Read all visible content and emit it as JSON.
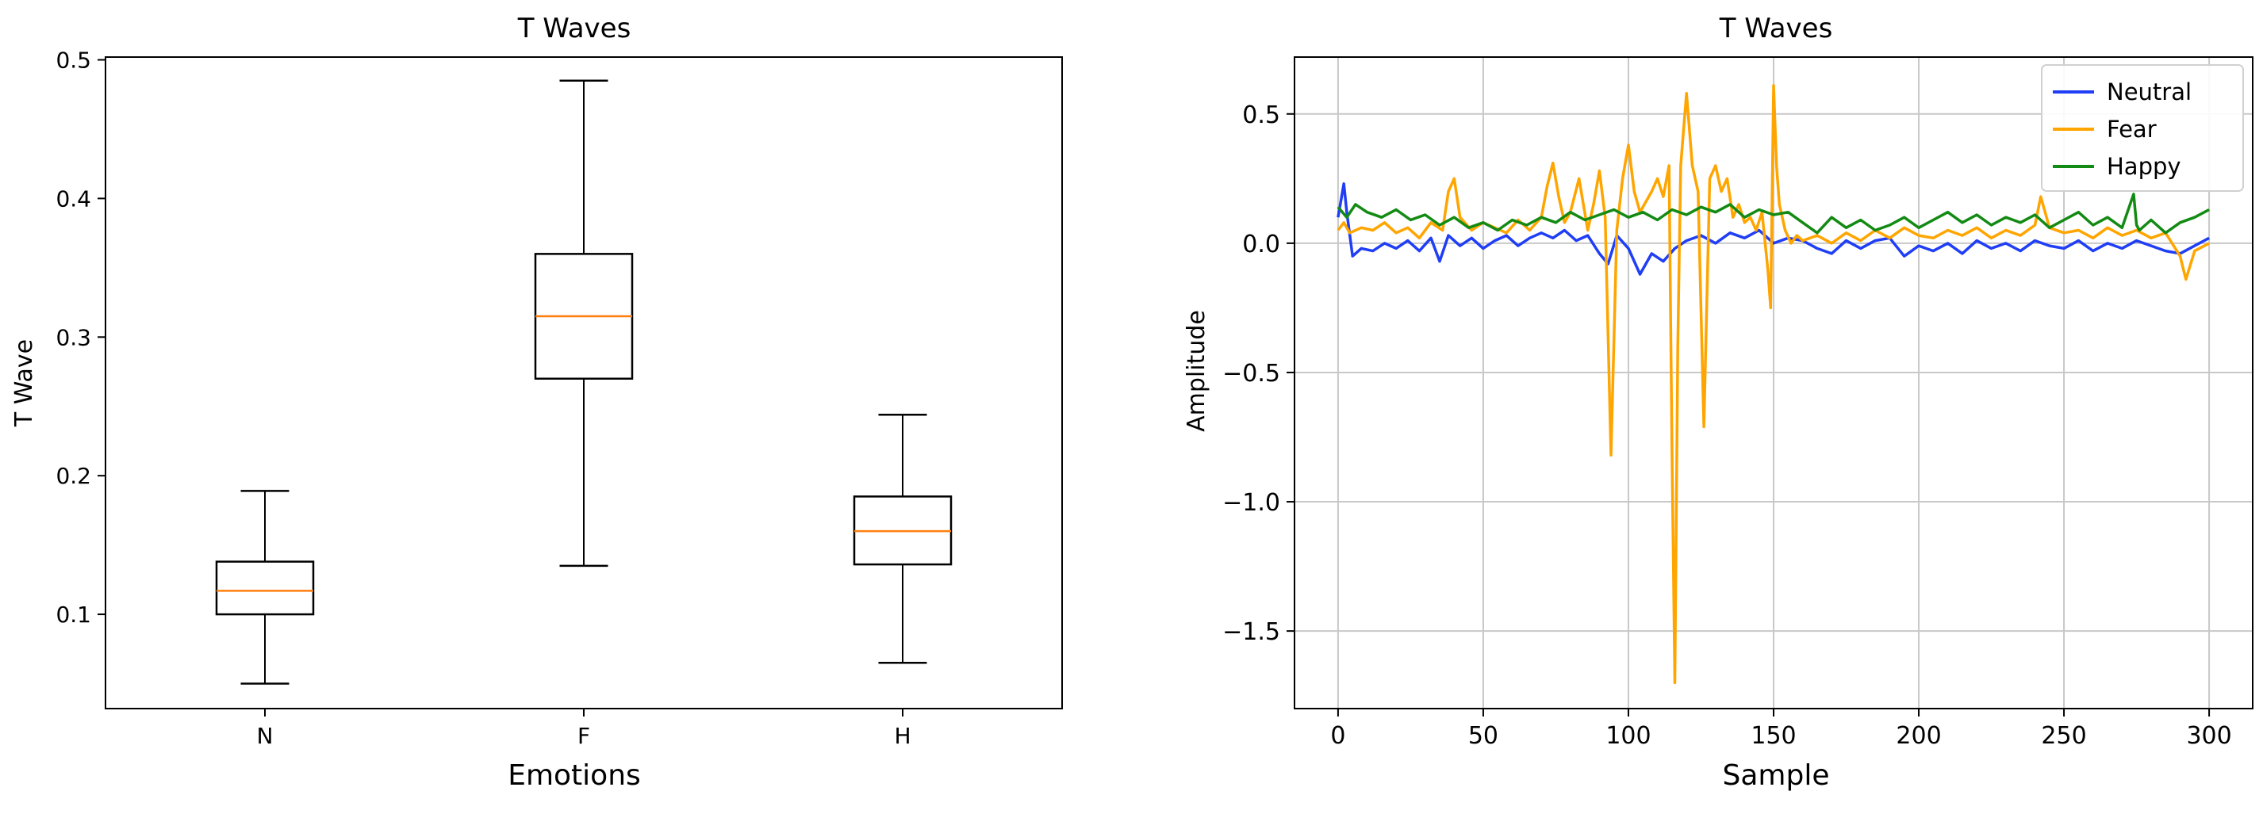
{
  "chart_data": [
    {
      "type": "box",
      "title": "T Waves",
      "xlabel": "Emotions",
      "ylabel": "T Wave",
      "ylim": [
        0.032,
        0.502
      ],
      "yticks": [
        0.1,
        0.2,
        0.3,
        0.4,
        0.5
      ],
      "ytick_labels": [
        "0.1",
        "0.2",
        "0.3",
        "0.4",
        "0.5"
      ],
      "categories": [
        "N",
        "F",
        "H"
      ],
      "boxes": [
        {
          "category": "N",
          "whisker_low": 0.05,
          "q1": 0.1,
          "median": 0.117,
          "q3": 0.138,
          "whisker_high": 0.189
        },
        {
          "category": "F",
          "whisker_low": 0.135,
          "q1": 0.27,
          "median": 0.315,
          "q3": 0.36,
          "whisker_high": 0.485
        },
        {
          "category": "H",
          "whisker_low": 0.065,
          "q1": 0.136,
          "median": 0.16,
          "q3": 0.185,
          "whisker_high": 0.244
        }
      ],
      "box_color": "#000000",
      "median_color": "#ff7f0e",
      "grid": false
    },
    {
      "type": "line",
      "title": "T Waves",
      "xlabel": "Sample",
      "ylabel": "Amplitude",
      "xlim": [
        -15,
        315
      ],
      "ylim": [
        -1.8,
        0.72
      ],
      "xticks": [
        0,
        50,
        100,
        150,
        200,
        250,
        300
      ],
      "xtick_labels": [
        "0",
        "50",
        "100",
        "150",
        "200",
        "250",
        "300"
      ],
      "yticks": [
        -1.5,
        -1.0,
        -0.5,
        0.0,
        0.5
      ],
      "ytick_labels": [
        "−1.5",
        "−1.0",
        "−0.5",
        "0.0",
        "0.5"
      ],
      "grid": true,
      "legend_position": "top-right",
      "series": [
        {
          "name": "Neutral",
          "color": "#1f3ef5",
          "x": [
            0,
            2,
            3,
            5,
            8,
            12,
            16,
            20,
            24,
            28,
            32,
            35,
            38,
            42,
            46,
            50,
            54,
            58,
            62,
            66,
            70,
            74,
            78,
            82,
            86,
            90,
            93,
            96,
            100,
            104,
            108,
            112,
            116,
            120,
            125,
            130,
            135,
            140,
            145,
            150,
            155,
            160,
            165,
            170,
            175,
            180,
            185,
            190,
            195,
            200,
            205,
            210,
            215,
            220,
            225,
            230,
            235,
            240,
            245,
            250,
            255,
            260,
            265,
            270,
            275,
            280,
            285,
            290,
            295,
            300
          ],
          "y": [
            0.1,
            0.23,
            0.12,
            -0.05,
            -0.02,
            -0.03,
            0.0,
            -0.02,
            0.01,
            -0.03,
            0.02,
            -0.07,
            0.03,
            -0.01,
            0.02,
            -0.02,
            0.01,
            0.03,
            -0.01,
            0.02,
            0.04,
            0.02,
            0.05,
            0.01,
            0.03,
            -0.04,
            -0.08,
            0.03,
            -0.02,
            -0.12,
            -0.04,
            -0.07,
            -0.02,
            0.01,
            0.03,
            0.0,
            0.04,
            0.02,
            0.05,
            0.0,
            0.02,
            0.01,
            -0.02,
            -0.04,
            0.01,
            -0.02,
            0.01,
            0.02,
            -0.05,
            -0.01,
            -0.03,
            0.0,
            -0.04,
            0.01,
            -0.02,
            0.0,
            -0.03,
            0.01,
            -0.01,
            -0.02,
            0.01,
            -0.03,
            0.0,
            -0.02,
            0.01,
            -0.01,
            -0.03,
            -0.04,
            -0.01,
            0.02
          ]
        },
        {
          "name": "Fear",
          "color": "#ffa500",
          "x": [
            0,
            2,
            4,
            8,
            12,
            16,
            20,
            24,
            28,
            32,
            36,
            38,
            40,
            42,
            46,
            50,
            54,
            58,
            62,
            66,
            70,
            72,
            74,
            76,
            78,
            80,
            83,
            86,
            88,
            90,
            92,
            94,
            96,
            98,
            100,
            102,
            104,
            106,
            108,
            110,
            112,
            114,
            115,
            116,
            117,
            118,
            120,
            122,
            124,
            126,
            128,
            130,
            132,
            134,
            136,
            138,
            140,
            142,
            144,
            146,
            148,
            149,
            150,
            151,
            152,
            154,
            156,
            158,
            160,
            165,
            170,
            175,
            180,
            185,
            190,
            195,
            200,
            205,
            210,
            215,
            220,
            225,
            230,
            235,
            240,
            242,
            245,
            250,
            255,
            260,
            265,
            270,
            275,
            280,
            285,
            290,
            292,
            295,
            300
          ],
          "y": [
            0.05,
            0.08,
            0.04,
            0.06,
            0.05,
            0.08,
            0.04,
            0.06,
            0.02,
            0.08,
            0.05,
            0.2,
            0.25,
            0.1,
            0.05,
            0.08,
            0.06,
            0.04,
            0.09,
            0.05,
            0.1,
            0.22,
            0.31,
            0.18,
            0.08,
            0.12,
            0.25,
            0.05,
            0.15,
            0.28,
            0.1,
            -0.82,
            0.05,
            0.25,
            0.38,
            0.2,
            0.12,
            0.16,
            0.2,
            0.25,
            0.18,
            0.3,
            -0.8,
            -1.7,
            -0.4,
            0.3,
            0.58,
            0.3,
            0.2,
            -0.71,
            0.25,
            0.3,
            0.2,
            0.25,
            0.1,
            0.15,
            0.08,
            0.1,
            0.05,
            0.12,
            -0.1,
            -0.25,
            0.61,
            0.3,
            0.15,
            0.05,
            0.0,
            0.03,
            0.01,
            0.03,
            0.0,
            0.04,
            0.01,
            0.05,
            0.02,
            0.06,
            0.03,
            0.02,
            0.05,
            0.03,
            0.06,
            0.02,
            0.05,
            0.03,
            0.07,
            0.18,
            0.06,
            0.04,
            0.05,
            0.02,
            0.06,
            0.03,
            0.05,
            0.02,
            0.04,
            -0.05,
            -0.14,
            -0.03,
            0.0
          ]
        },
        {
          "name": "Happy",
          "color": "#138a13",
          "x": [
            0,
            3,
            6,
            10,
            15,
            20,
            25,
            30,
            35,
            40,
            45,
            50,
            55,
            60,
            65,
            70,
            75,
            80,
            85,
            90,
            95,
            100,
            105,
            110,
            115,
            120,
            125,
            130,
            135,
            140,
            145,
            150,
            155,
            160,
            165,
            170,
            175,
            180,
            185,
            190,
            195,
            200,
            205,
            210,
            215,
            220,
            225,
            230,
            235,
            240,
            245,
            250,
            255,
            260,
            265,
            270,
            274,
            275,
            276,
            280,
            285,
            290,
            295,
            300
          ],
          "y": [
            0.14,
            0.1,
            0.15,
            0.12,
            0.1,
            0.13,
            0.09,
            0.11,
            0.07,
            0.1,
            0.06,
            0.08,
            0.05,
            0.09,
            0.07,
            0.1,
            0.08,
            0.12,
            0.09,
            0.11,
            0.13,
            0.1,
            0.12,
            0.09,
            0.13,
            0.11,
            0.14,
            0.12,
            0.15,
            0.1,
            0.13,
            0.11,
            0.12,
            0.08,
            0.04,
            0.1,
            0.06,
            0.09,
            0.05,
            0.07,
            0.1,
            0.06,
            0.09,
            0.12,
            0.08,
            0.11,
            0.07,
            0.1,
            0.08,
            0.11,
            0.06,
            0.09,
            0.12,
            0.07,
            0.1,
            0.06,
            0.19,
            0.07,
            0.05,
            0.09,
            0.04,
            0.08,
            0.1,
            0.13
          ]
        }
      ]
    }
  ]
}
